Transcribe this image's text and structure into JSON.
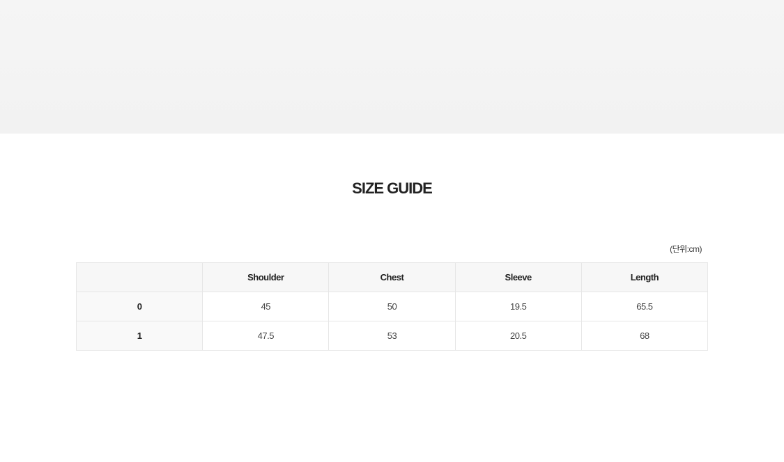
{
  "title": "SIZE GUIDE",
  "unit_label": "(단위:cm)",
  "table": {
    "headers": [
      "",
      "Shoulder",
      "Chest",
      "Sleeve",
      "Length"
    ],
    "rows": [
      [
        "0",
        "45",
        "50",
        "19.5",
        "65.5"
      ],
      [
        "1",
        "47.5",
        "53",
        "20.5",
        "68"
      ]
    ]
  }
}
